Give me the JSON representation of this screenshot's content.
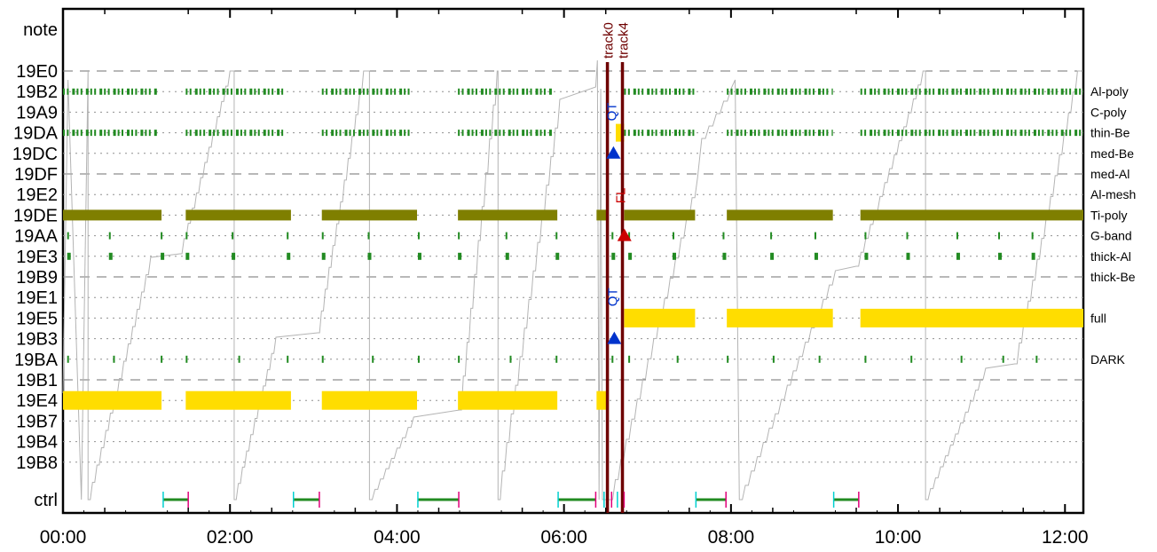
{
  "chart_data": {
    "type": "timeline",
    "x_range": [
      "00:00",
      "12:13"
    ],
    "x_ticks": [
      "00:00",
      "02:00",
      "04:00",
      "06:00",
      "08:00",
      "10:00",
      "12:00"
    ],
    "rows": [
      {
        "id": "note",
        "label": "note",
        "right": "",
        "style": "none"
      },
      {
        "id": "19E0",
        "label": "19E0",
        "right": "",
        "style": "dashed"
      },
      {
        "id": "19B2",
        "label": "19B2",
        "right": "Al-poly",
        "style": "dotted"
      },
      {
        "id": "19A9",
        "label": "19A9",
        "right": "C-poly",
        "style": "dotted"
      },
      {
        "id": "19DA",
        "label": "19DA",
        "right": "thin-Be",
        "style": "dotted"
      },
      {
        "id": "19DC",
        "label": "19DC",
        "right": "med-Be",
        "style": "dotted"
      },
      {
        "id": "19DF",
        "label": "19DF",
        "right": "med-Al",
        "style": "dashed"
      },
      {
        "id": "19E2",
        "label": "19E2",
        "right": "Al-mesh",
        "style": "dotted"
      },
      {
        "id": "19DE",
        "label": "19DE",
        "right": "Ti-poly",
        "style": "dotted"
      },
      {
        "id": "19AA",
        "label": "19AA",
        "right": "G-band",
        "style": "dotted"
      },
      {
        "id": "19E3",
        "label": "19E3",
        "right": "thick-Al",
        "style": "dotted"
      },
      {
        "id": "19B9",
        "label": "19B9",
        "right": "thick-Be",
        "style": "dashed"
      },
      {
        "id": "19E1",
        "label": "19E1",
        "right": "",
        "style": "dotted"
      },
      {
        "id": "19E5",
        "label": "19E5",
        "right": "full",
        "style": "dotted"
      },
      {
        "id": "19B3",
        "label": "19B3",
        "right": "",
        "style": "dotted"
      },
      {
        "id": "19BA",
        "label": "19BA",
        "right": "DARK",
        "style": "dotted"
      },
      {
        "id": "19B1",
        "label": "19B1",
        "right": "",
        "style": "dashed"
      },
      {
        "id": "19E4",
        "label": "19E4",
        "right": "",
        "style": "dotted"
      },
      {
        "id": "19B7",
        "label": "19B7",
        "right": "",
        "style": "dotted"
      },
      {
        "id": "19B4",
        "label": "19B4",
        "right": "",
        "style": "dotted"
      },
      {
        "id": "19B8",
        "label": "19B8",
        "right": "",
        "style": "dotted"
      },
      {
        "id": "ctrl",
        "label": "ctrl",
        "right": "",
        "style": "none"
      }
    ],
    "bars": {
      "19DE": [
        [
          0,
          1.18
        ],
        [
          1.47,
          2.73
        ],
        [
          3.1,
          4.24
        ],
        [
          4.73,
          5.92
        ],
        [
          6.39,
          6.53
        ],
        [
          6.72,
          7.57
        ],
        [
          7.95,
          9.22
        ],
        [
          9.55,
          12.22
        ]
      ],
      "19E5": [
        [
          6.72,
          7.57
        ],
        [
          7.95,
          9.22
        ],
        [
          9.55,
          12.22
        ]
      ],
      "19E4": [
        [
          0,
          1.18
        ],
        [
          1.47,
          2.73
        ],
        [
          3.1,
          4.24
        ],
        [
          4.73,
          5.92
        ],
        [
          6.39,
          6.53
        ]
      ],
      "19DA_small": [
        [
          6.62,
          6.72
        ]
      ]
    },
    "tick_bands": {
      "19B2": [
        [
          0,
          1.13
        ],
        [
          1.47,
          2.66
        ],
        [
          3.1,
          4.19
        ],
        [
          4.73,
          5.86
        ],
        [
          6.72,
          7.57
        ],
        [
          7.95,
          9.22
        ],
        [
          9.55,
          12.22
        ]
      ],
      "19DA": [
        [
          0,
          1.13
        ],
        [
          1.47,
          2.66
        ],
        [
          3.1,
          4.19
        ],
        [
          4.73,
          5.86
        ],
        [
          6.72,
          7.57
        ],
        [
          7.95,
          9.22
        ],
        [
          9.55,
          12.22
        ]
      ]
    },
    "sparse_ticks": {
      "19AA": [
        0.05,
        0.55,
        1.17,
        1.47,
        2.02,
        2.68,
        3.1,
        3.65,
        4.25,
        4.73,
        5.3,
        5.9,
        6.57,
        6.77,
        7.3,
        7.9,
        8.47,
        9.0,
        9.6,
        10.1,
        10.7,
        11.2,
        11.6
      ],
      "19E3": [
        0.05,
        0.55,
        1.17,
        1.47,
        2.02,
        2.68,
        3.1,
        3.65,
        4.25,
        4.73,
        5.3,
        5.9,
        6.57,
        6.77,
        7.3,
        7.9,
        8.47,
        9.0,
        9.6,
        10.1,
        10.7,
        11.2,
        11.6
      ],
      "19BA": [
        0.05,
        0.6,
        1.17,
        1.47,
        2.1,
        2.68,
        3.1,
        3.7,
        4.25,
        4.73,
        5.35,
        5.9,
        6.57,
        6.77,
        7.35,
        7.95,
        8.5,
        9.05,
        9.6,
        10.15,
        10.75,
        11.25,
        11.65
      ]
    },
    "ramps": [
      [
        0.06,
        0.28,
        "down"
      ],
      [
        0.28,
        0.3,
        "up"
      ],
      [
        1.4,
        2.12,
        "ramp"
      ],
      [
        2.95,
        3.67,
        "ramp"
      ],
      [
        4.55,
        5.21,
        "ramp"
      ],
      [
        5.95,
        6.38,
        "ramp"
      ],
      [
        6.7,
        7.6,
        "ramp"
      ],
      [
        8.2,
        8.75,
        "ramp"
      ],
      [
        10.0,
        10.9,
        "ramp"
      ],
      [
        11.5,
        12.22,
        "ramp"
      ]
    ],
    "tracks": [
      {
        "name": "track0",
        "x": 6.52
      },
      {
        "name": "track4",
        "x": 6.7
      }
    ],
    "markers": [
      {
        "text": "QT",
        "x": 6.55,
        "row": "19A9",
        "color": "#0033cc",
        "tri": "up",
        "tri_row": "19DC"
      },
      {
        "text": "QT",
        "x": 6.56,
        "row": "19E1",
        "color": "#0033cc",
        "tri": "up",
        "tri_row": "19B3"
      },
      {
        "text": "FL",
        "x": 6.66,
        "row": "19E2",
        "color": "#cc0000",
        "tri": "up",
        "tri_row": "19AA"
      }
    ],
    "ctrl_segments": [
      [
        1.2,
        1.5
      ],
      [
        2.76,
        3.07
      ],
      [
        4.25,
        4.74
      ],
      [
        5.93,
        6.38
      ],
      [
        7.58,
        7.94
      ],
      [
        9.23,
        9.53
      ]
    ],
    "colors": {
      "olive": "#7f7f00",
      "yellow": "#ffdd00",
      "green": "#228b22",
      "track": "#6e0000",
      "ramp": "#b4b4b4",
      "cyan": "#00d0d0",
      "magenta": "#e0007a"
    }
  }
}
